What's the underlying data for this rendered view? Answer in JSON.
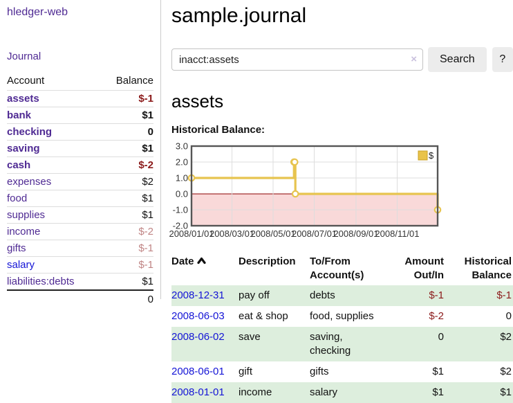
{
  "app": {
    "title": "hledger-web",
    "nav_journal": "Journal"
  },
  "sidebar": {
    "header": {
      "account": "Account",
      "balance": "Balance"
    },
    "accounts": [
      {
        "name": "assets",
        "depth": 1,
        "bold": true,
        "balance": "$-1",
        "neg": "strong"
      },
      {
        "name": "bank",
        "depth": 2,
        "bold": true,
        "balance": "$1",
        "neg": "none"
      },
      {
        "name": "checking",
        "depth": 3,
        "bold": true,
        "balance": "0",
        "neg": "none"
      },
      {
        "name": "saving",
        "depth": 3,
        "bold": true,
        "balance": "$1",
        "neg": "none"
      },
      {
        "name": "cash",
        "depth": 2,
        "bold": true,
        "balance": "$-2",
        "neg": "strong"
      },
      {
        "name": "expenses",
        "depth": 1,
        "bold": false,
        "balance": "$2",
        "neg": "none"
      },
      {
        "name": "food",
        "depth": 2,
        "bold": false,
        "balance": "$1",
        "neg": "none"
      },
      {
        "name": "supplies",
        "depth": 2,
        "bold": false,
        "balance": "$1",
        "neg": "none"
      },
      {
        "name": "income",
        "depth": 1,
        "bold": false,
        "balance": "$-2",
        "neg": "faded"
      },
      {
        "name": "gifts",
        "depth": 2,
        "bold": false,
        "balance": "$-1",
        "neg": "faded"
      },
      {
        "name": "salary",
        "depth": 2,
        "bold": false,
        "balance": "$-1",
        "neg": "faded",
        "link_color": "blue"
      },
      {
        "name": "liabilities:debts",
        "depth": 1,
        "bold": false,
        "balance": "$1",
        "neg": "none"
      }
    ],
    "total": "0"
  },
  "header": {
    "title": "sample.journal"
  },
  "search": {
    "value": "inacct:assets",
    "clear_icon": "×",
    "button": "Search",
    "help_button": "?"
  },
  "account_page": {
    "title": "assets",
    "chart_label": "Historical Balance:"
  },
  "chart_data": {
    "type": "line",
    "title": "Historical Balance",
    "step": true,
    "series": [
      {
        "name": "$",
        "color": "#e7c44f",
        "points": [
          [
            "2008/01/01",
            1
          ],
          [
            "2008/06/01",
            2
          ],
          [
            "2008/06/02",
            2
          ],
          [
            "2008/06/03",
            0
          ],
          [
            "2008/12/31",
            -1
          ]
        ]
      }
    ],
    "x_range": [
      "2008/01/01",
      "2008/12/31"
    ],
    "x_ticks": [
      "2008/01/01",
      "2008/03/01",
      "2008/05/01",
      "2008/07/01",
      "2008/09/01",
      "2008/11/01"
    ],
    "y_ticks": [
      "3.0",
      "2.0",
      "1.0",
      "0.0",
      "-1.0",
      "-2.0"
    ],
    "ylim": [
      -2,
      3
    ],
    "grid": true,
    "negative_fill": "#f9d9d9",
    "zero_line_color": "#8b0000",
    "legend": {
      "label": "$",
      "position": "top-right",
      "swatch_fill": "#e9c34a",
      "swatch_border": "#c9a227"
    }
  },
  "table": {
    "headers": {
      "date": "Date",
      "description": "Description",
      "accounts": "To/From Account(s)",
      "amount": "Amount Out/In",
      "historical": "Historical Balance"
    },
    "rows": [
      {
        "date": "2008-12-31",
        "description": "pay off",
        "accounts": "debts",
        "amount": "$-1",
        "amount_neg": true,
        "historical": "$-1",
        "historical_neg": true,
        "striped": true
      },
      {
        "date": "2008-06-03",
        "description": "eat & shop",
        "accounts": "food, supplies",
        "amount": "$-2",
        "amount_neg": true,
        "historical": "0",
        "historical_neg": false,
        "striped": false
      },
      {
        "date": "2008-06-02",
        "description": "save",
        "accounts": "saving, checking",
        "amount": "0",
        "amount_neg": false,
        "historical": "$2",
        "historical_neg": false,
        "striped": true
      },
      {
        "date": "2008-06-01",
        "description": "gift",
        "accounts": "gifts",
        "amount": "$1",
        "amount_neg": false,
        "historical": "$2",
        "historical_neg": false,
        "striped": false
      },
      {
        "date": "2008-01-01",
        "description": "income",
        "accounts": "salary",
        "amount": "$1",
        "amount_neg": false,
        "historical": "$1",
        "historical_neg": false,
        "striped": true
      }
    ]
  }
}
